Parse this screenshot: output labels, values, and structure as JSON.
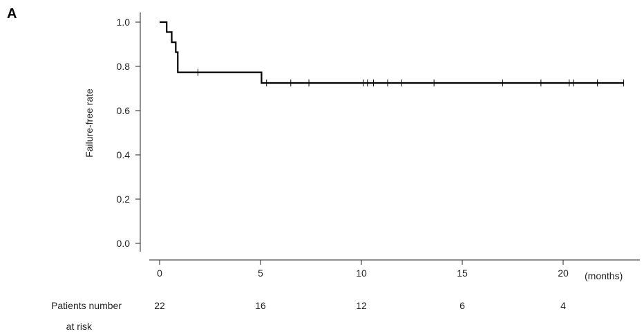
{
  "panel_label": "A",
  "chart_data": {
    "type": "line",
    "title": "",
    "ylabel": "Failure-free rate",
    "xlabel": "",
    "x_unit_label": "(months)",
    "xlim": [
      0,
      24
    ],
    "ylim": [
      0,
      1.04
    ],
    "x_ticks": [
      0,
      5,
      10,
      15,
      20
    ],
    "x_tick_labels": [
      "0",
      "5",
      "10",
      "15",
      "20"
    ],
    "y_ticks": [
      0.0,
      0.2,
      0.4,
      0.6,
      0.8,
      1.0
    ],
    "y_tick_labels": [
      "0.0",
      "0.2",
      "0.4",
      "0.6",
      "0.8",
      "1.0"
    ],
    "grid": false,
    "series": [
      {
        "color": "#000000",
        "step_x": [
          0,
          0.35,
          0.6,
          0.8,
          0.9,
          5.05,
          23.0
        ],
        "step_y": [
          1.0,
          0.955,
          0.909,
          0.864,
          0.773,
          0.725,
          0.725
        ],
        "censored_x": [
          1.9,
          5.3,
          6.5,
          7.4,
          10.1,
          10.3,
          10.6,
          11.3,
          12.0,
          13.6,
          17.0,
          18.9,
          20.3,
          20.5,
          21.7,
          23.0
        ]
      }
    ],
    "risk_table": {
      "label_line1": "Patients number",
      "label_line2": "at risk",
      "times": [
        0,
        5,
        10,
        15,
        20
      ],
      "counts": [
        "22",
        "16",
        "12",
        "6",
        "4"
      ]
    }
  }
}
